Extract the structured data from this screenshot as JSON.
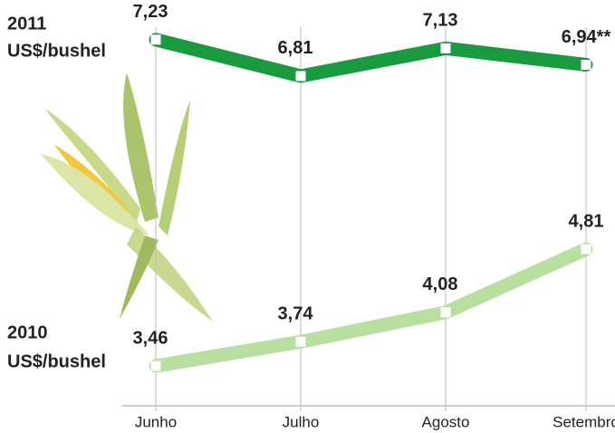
{
  "chart_data": {
    "type": "line",
    "categories": [
      "Junho",
      "Julho",
      "Agosto",
      "Setembro"
    ],
    "series": [
      {
        "name": "2011",
        "unit": "US$/bushel",
        "color": "#1a9a3e",
        "values": [
          7.23,
          6.81,
          7.13,
          6.94
        ],
        "value_labels": [
          "7,23",
          "6,81",
          "7,13",
          "6,94**"
        ]
      },
      {
        "name": "2010",
        "unit": "US$/bushel",
        "color": "#b8dea0",
        "values": [
          3.46,
          3.74,
          4.08,
          4.81
        ],
        "value_labels": [
          "3,46",
          "3,74",
          "4,08",
          "4,81"
        ]
      }
    ],
    "ylim": [
      3,
      7.5
    ],
    "grid": true
  }
}
